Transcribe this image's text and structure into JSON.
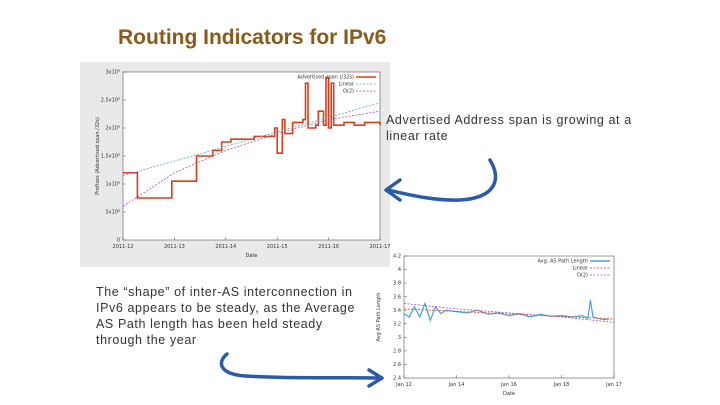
{
  "slide": {
    "title": "Routing Indicators for IPv6",
    "note_top": "Advertised Address span is  growing at a linear rate",
    "note_bottom": "The “shape” of inter-AS interconnection in IPv6 appears to be steady, as the Average AS Path length has been held steady through the year"
  },
  "colors": {
    "title": "#8a5a1a",
    "series": "#d8401a",
    "linear": "#4aa6d6",
    "o2": "#b04ac8",
    "path": "#4aa0d8",
    "arrow": "#2a5aa8"
  },
  "icons": {
    "arrow1": "curved-arrow-left-icon",
    "arrow2": "curved-arrow-right-icon"
  },
  "chart_data": [
    {
      "type": "line",
      "title": "",
      "xlabel": "Date",
      "ylabel": "Prefixes (Advertised span /32s)",
      "x_ticks": [
        "2011-12",
        "2011-13",
        "2011-14",
        "2011-15",
        "2011-16",
        "2011-17"
      ],
      "y_ticks": [
        "0",
        "5x10⁸",
        "1x10⁹",
        "1.5x10⁹",
        "2x10⁹",
        "2.5x10⁹",
        "3x10⁹"
      ],
      "xlim": [
        0,
        5
      ],
      "ylim": [
        0,
        3.0
      ],
      "legend": [
        "Advertised span (/32s)",
        "Linear",
        "O(2)"
      ],
      "legend_position": "top-right",
      "series": [
        {
          "name": "Advertised span (/32s)",
          "x": [
            0.0,
            0.05,
            0.25,
            0.28,
            0.9,
            0.95,
            1.15,
            1.4,
            1.43,
            1.6,
            1.75,
            1.85,
            1.9,
            1.92,
            2.05,
            2.1,
            2.5,
            2.55,
            2.9,
            2.95,
            3.0,
            3.1,
            3.15,
            3.3,
            3.5,
            3.55,
            3.6,
            3.75,
            3.8,
            3.9,
            3.95,
            4.0,
            4.05,
            4.1,
            4.3,
            4.5,
            4.7,
            4.9,
            5.0
          ],
          "y": [
            1.2,
            1.2,
            1.2,
            0.75,
            0.75,
            1.05,
            1.05,
            1.05,
            1.5,
            1.5,
            1.6,
            1.6,
            1.6,
            1.75,
            1.75,
            1.8,
            1.8,
            1.85,
            1.85,
            2.0,
            1.55,
            2.15,
            1.9,
            2.1,
            2.15,
            2.8,
            2.0,
            2.05,
            2.3,
            2.05,
            2.9,
            2.0,
            2.8,
            2.05,
            2.1,
            2.05,
            2.1,
            2.1,
            2.05
          ]
        },
        {
          "name": "Linear",
          "x": [
            0,
            5
          ],
          "y": [
            1.15,
            2.45
          ]
        },
        {
          "name": "O(2)",
          "x": [
            0,
            1,
            2,
            3,
            4,
            5
          ],
          "y": [
            0.6,
            1.2,
            1.6,
            1.9,
            2.15,
            2.3
          ]
        }
      ]
    },
    {
      "type": "line",
      "title": "",
      "xlabel": "Date",
      "ylabel": "Avg AS Path Length",
      "x_ticks": [
        "Jan 12",
        "Jan 14",
        "Jan 16",
        "Jan 18",
        "Jan 17"
      ],
      "y_ticks": [
        "2.4",
        "2.6",
        "2.8",
        "3",
        "3.2",
        "3.4",
        "3.6",
        "3.8",
        "4",
        "4.2"
      ],
      "xlim": [
        0,
        4
      ],
      "ylim": [
        2.4,
        4.2
      ],
      "legend": [
        "Avg. AS Path Length",
        "Linear",
        "O(2)"
      ],
      "legend_position": "top-right",
      "series": [
        {
          "name": "Avg. AS Path Length",
          "x": [
            0.0,
            0.1,
            0.2,
            0.3,
            0.4,
            0.5,
            0.6,
            0.7,
            0.8,
            1.0,
            1.2,
            1.4,
            1.6,
            1.8,
            2.0,
            2.2,
            2.4,
            2.6,
            2.8,
            3.0,
            3.2,
            3.4,
            3.5,
            3.55,
            3.6,
            3.7,
            3.8,
            3.9
          ],
          "y": [
            3.35,
            3.3,
            3.45,
            3.3,
            3.5,
            3.25,
            3.45,
            3.35,
            3.4,
            3.38,
            3.36,
            3.4,
            3.34,
            3.36,
            3.32,
            3.35,
            3.3,
            3.34,
            3.31,
            3.32,
            3.3,
            3.32,
            3.28,
            3.55,
            3.3,
            3.28,
            3.26,
            3.27
          ]
        },
        {
          "name": "Linear",
          "x": [
            0,
            4
          ],
          "y": [
            3.42,
            3.27
          ]
        },
        {
          "name": "O(2)",
          "x": [
            0,
            1,
            2,
            3,
            4
          ],
          "y": [
            3.5,
            3.42,
            3.36,
            3.3,
            3.22
          ]
        }
      ]
    }
  ]
}
